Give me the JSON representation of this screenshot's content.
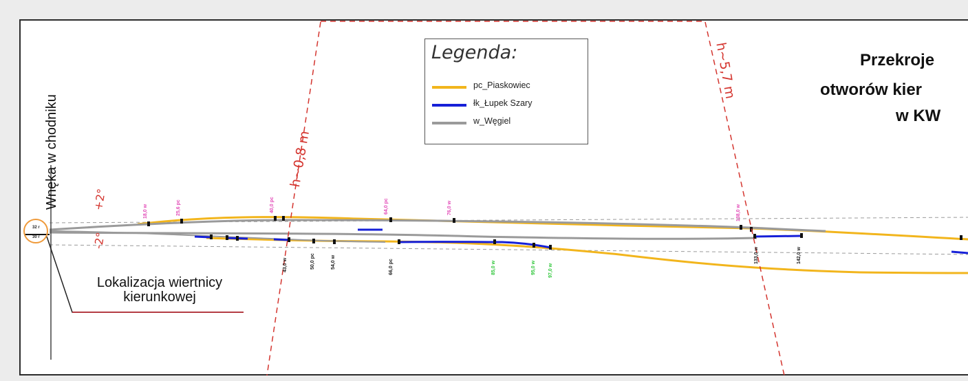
{
  "title": {
    "line1": "Przekroje",
    "line2": "otworów kier",
    "line3": "w KW"
  },
  "legend": {
    "title": "Legenda:",
    "items": [
      {
        "label": "pc_Piaskowiec",
        "color": "#f2b51c"
      },
      {
        "label": "łk_Łupek Szary",
        "color": "#1620d8"
      },
      {
        "label": "w_Węgiel",
        "color": "#9a9a9a"
      }
    ]
  },
  "annotations": {
    "niche": "Wnęka w chodniku",
    "rig_line1": "Lokalizacja wiertnicy",
    "rig_line2": "kierunkowej",
    "h_left": "h~0,8 m",
    "h_right": "h~5,7 m",
    "angle_up": "+2°",
    "angle_down": "-2°"
  },
  "depth_labels": {
    "magenta": [
      "18,0 w",
      "25,6 pc",
      "40,0 pc",
      "64,0 pc",
      "76,0 w",
      "138,0 w"
    ],
    "black": [
      "43,0 w",
      "50,0 pc",
      "54,0 w",
      "66,0 pc",
      "133,0 w",
      "142,0 w"
    ],
    "green": [
      "85,0 w",
      "95,0 w",
      "97,0 w"
    ]
  },
  "colors": {
    "sandstone": "#f2b51c",
    "shale": "#1620d8",
    "coal": "#9a9a9a",
    "shaft": "#d4352f",
    "magenta": "#e24ab7",
    "green": "#2fc63a"
  }
}
